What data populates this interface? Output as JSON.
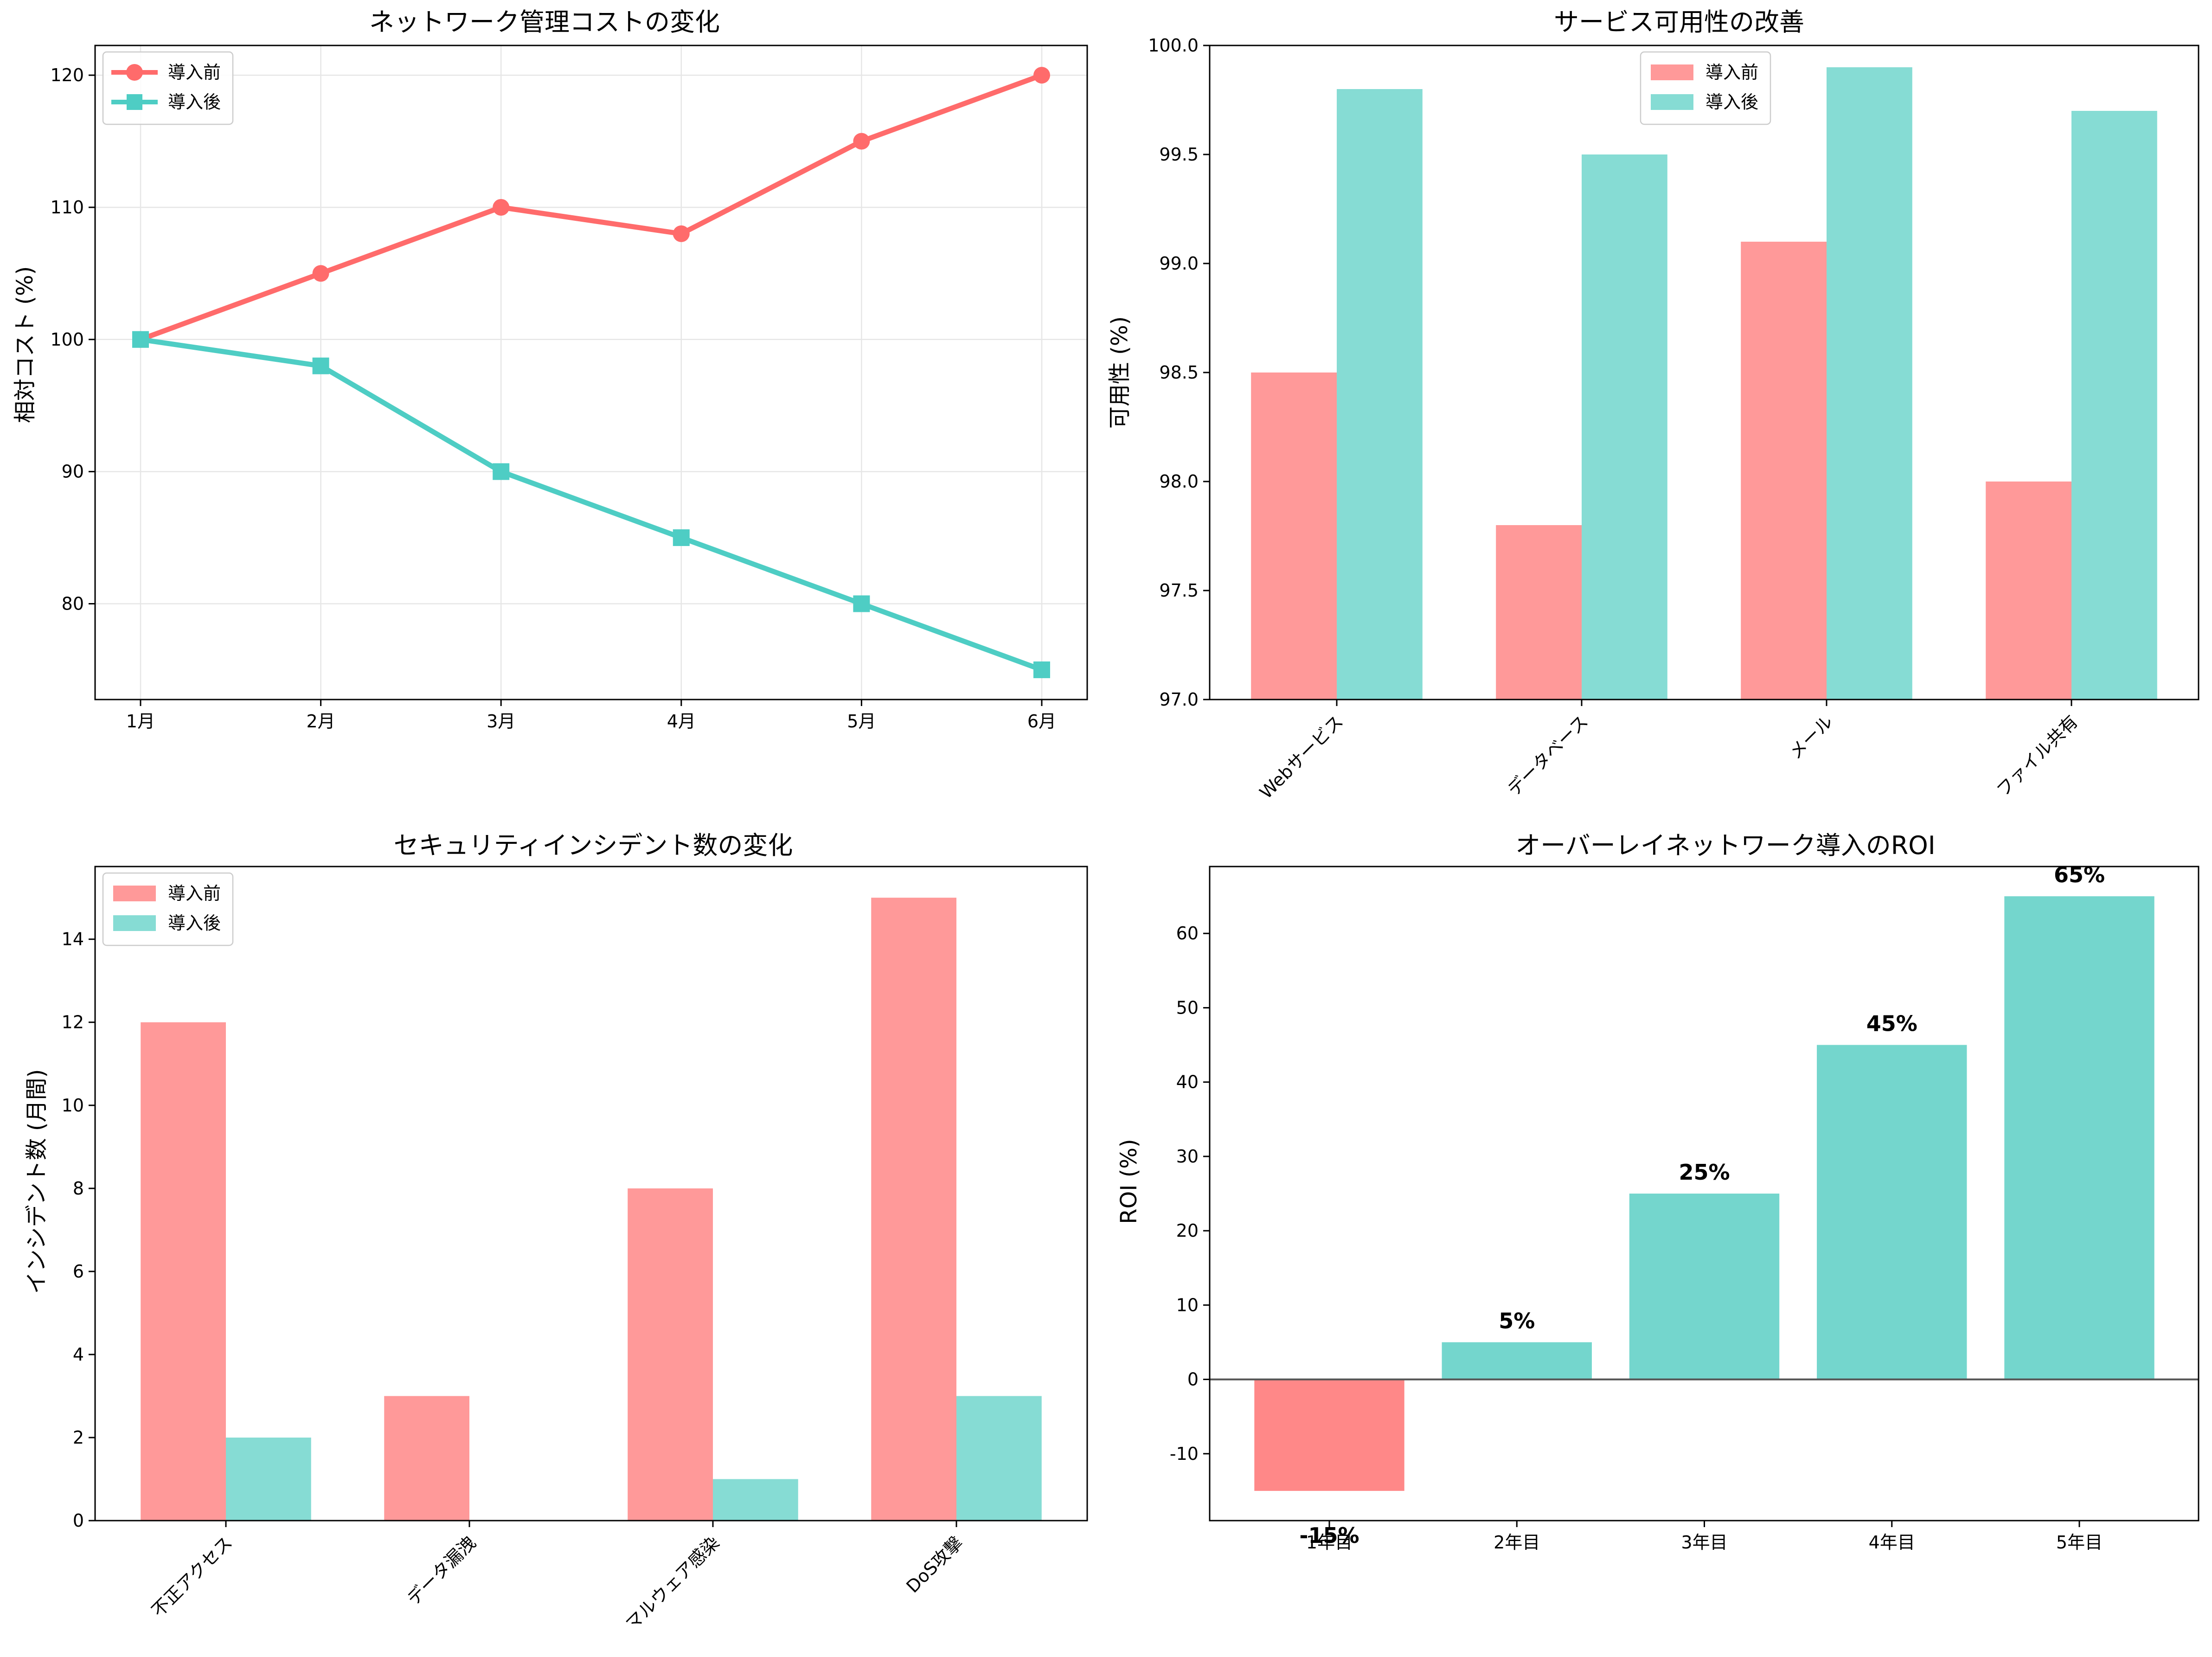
{
  "chart_data": [
    {
      "type": "line",
      "title": "ネットワーク管理コストの変化",
      "xlabel": "",
      "ylabel": "相対コスト (%)",
      "categories": [
        "1月",
        "2月",
        "3月",
        "4月",
        "5月",
        "6月"
      ],
      "series": [
        {
          "name": "導入前",
          "values": [
            100,
            105,
            110,
            108,
            115,
            120
          ],
          "color": "#ff6b6b",
          "marker": "circle"
        },
        {
          "name": "導入後",
          "values": [
            100,
            98,
            90,
            85,
            80,
            75
          ],
          "color": "#4ecdc4",
          "marker": "square"
        }
      ],
      "ylim": [
        72.75,
        122.25
      ],
      "yticks": [
        80,
        90,
        100,
        110,
        120
      ],
      "grid": true,
      "legend": "top-left"
    },
    {
      "type": "bar",
      "title": "サービス可用性の改善",
      "xlabel": "",
      "ylabel": "可用性 (%)",
      "categories": [
        "Webサービス",
        "データベース",
        "メール",
        "ファイル共有"
      ],
      "series": [
        {
          "name": "導入前",
          "values": [
            98.5,
            97.8,
            99.1,
            98.0
          ],
          "color": "#ff9999"
        },
        {
          "name": "導入後",
          "values": [
            99.8,
            99.5,
            99.9,
            99.7
          ],
          "color": "#86dcd4"
        }
      ],
      "ylim": [
        97.0,
        100.0
      ],
      "yticks": [
        "97.0",
        "97.5",
        "98.0",
        "98.5",
        "99.0",
        "99.5",
        "100.0"
      ],
      "grid": false,
      "legend": "top-center"
    },
    {
      "type": "bar",
      "title": "セキュリティインシデント数の変化",
      "xlabel": "",
      "ylabel": "インシデント数 (月間)",
      "categories": [
        "不正アクセス",
        "データ漏洩",
        "マルウェア感染",
        "DoS攻撃"
      ],
      "series": [
        {
          "name": "導入前",
          "values": [
            12,
            3,
            8,
            15
          ],
          "color": "#ff9999"
        },
        {
          "name": "導入後",
          "values": [
            2,
            0,
            1,
            3
          ],
          "color": "#86dcd4"
        }
      ],
      "ylim": [
        0,
        15.75
      ],
      "yticks": [
        0,
        2,
        4,
        6,
        8,
        10,
        12,
        14
      ],
      "grid": false,
      "legend": "top-left"
    },
    {
      "type": "bar",
      "title": "オーバーレイネットワーク導入のROI",
      "xlabel": "",
      "ylabel": "ROI (%)",
      "categories": [
        "1年目",
        "2年目",
        "3年目",
        "4年目",
        "5年目"
      ],
      "values": [
        -15,
        5,
        25,
        45,
        65
      ],
      "data_labels": [
        "-15%",
        "5%",
        "25%",
        "45%",
        "65%"
      ],
      "colors": [
        "#ff8888",
        "#74d6cd",
        "#74d6cd",
        "#74d6cd",
        "#74d6cd"
      ],
      "ylim": [
        -19,
        69
      ],
      "yticks": [
        -10,
        0,
        10,
        20,
        30,
        40,
        50,
        60
      ],
      "zero_line": true,
      "grid": false
    }
  ]
}
